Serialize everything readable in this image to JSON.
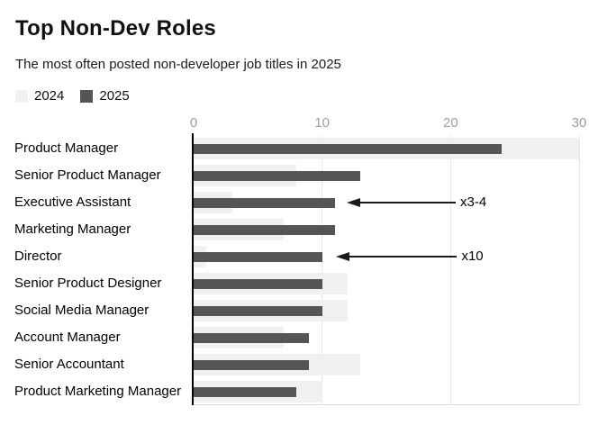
{
  "header": {
    "title": "Top Non-Dev Roles",
    "subtitle": "The most often posted non-developer job titles in 2025"
  },
  "legend": {
    "items": [
      {
        "label": "2024",
        "color": "#f0f0f0"
      },
      {
        "label": "2025",
        "color": "#555555"
      }
    ]
  },
  "chart_data": {
    "type": "bar",
    "orientation": "horizontal",
    "title": "Top Non-Dev Roles",
    "subtitle": "The most often posted non-developer job titles in 2025",
    "categories": [
      "Product Manager",
      "Senior Product Manager",
      "Executive Assistant",
      "Marketing Manager",
      "Director",
      "Senior Product Designer",
      "Social Media Manager",
      "Account Manager",
      "Senior Accountant",
      "Product Marketing Manager"
    ],
    "series": [
      {
        "name": "2024",
        "color": "#f0f0f0",
        "values": [
          30,
          8,
          3,
          7,
          1,
          12,
          12,
          7,
          13,
          10
        ]
      },
      {
        "name": "2025",
        "color": "#555555",
        "values": [
          24,
          13,
          11,
          11,
          10,
          10,
          10,
          9,
          9,
          8
        ]
      }
    ],
    "xlim": [
      0,
      30
    ],
    "x_ticks": [
      0,
      10,
      20,
      30
    ],
    "grid": "vertical-at-ticks",
    "legend_position": "top-left",
    "annotations": [
      {
        "label": "x3-4",
        "row_index": 2,
        "tip_value": 11.9,
        "tail_value": 20.4
      },
      {
        "label": "x10",
        "row_index": 4,
        "tip_value": 11.1,
        "tail_value": 20.5
      }
    ]
  },
  "colors": {
    "bar_2024": "#f0f0f0",
    "bar_2025": "#555555",
    "tick_text": "#9e9e9e",
    "gridline": "#e6e6e6",
    "axis_line": "#000000",
    "baseline": "#dddddd",
    "text": "#111111"
  }
}
